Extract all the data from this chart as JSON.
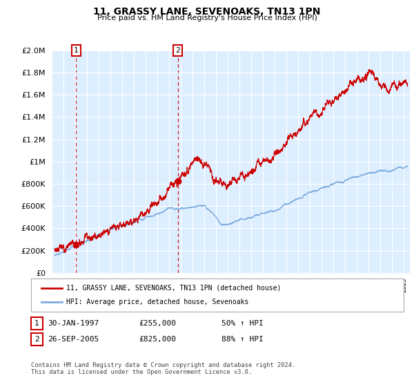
{
  "title": "11, GRASSY LANE, SEVENOAKS, TN13 1PN",
  "subtitle": "Price paid vs. HM Land Registry's House Price Index (HPI)",
  "hpi_label": "HPI: Average price, detached house, Sevenoaks",
  "price_label": "11, GRASSY LANE, SEVENOAKS, TN13 1PN (detached house)",
  "transaction1_date": "30-JAN-1997",
  "transaction1_price": 255000,
  "transaction1_hpi_pct": "50% ↑ HPI",
  "transaction2_date": "26-SEP-2005",
  "transaction2_price": 825000,
  "transaction2_hpi_pct": "88% ↑ HPI",
  "red_color": "#cc0000",
  "blue_color": "#7aaadd",
  "background_color": "#ddeeff",
  "grid_color": "#ffffff",
  "ylim": [
    0,
    2000000
  ],
  "xlim_start": 1995.25,
  "xlim_end": 2025.5,
  "transaction1_x": 1997.08,
  "transaction2_x": 2005.73,
  "footer": "Contains HM Land Registry data © Crown copyright and database right 2024.\nThis data is licensed under the Open Government Licence v3.0."
}
